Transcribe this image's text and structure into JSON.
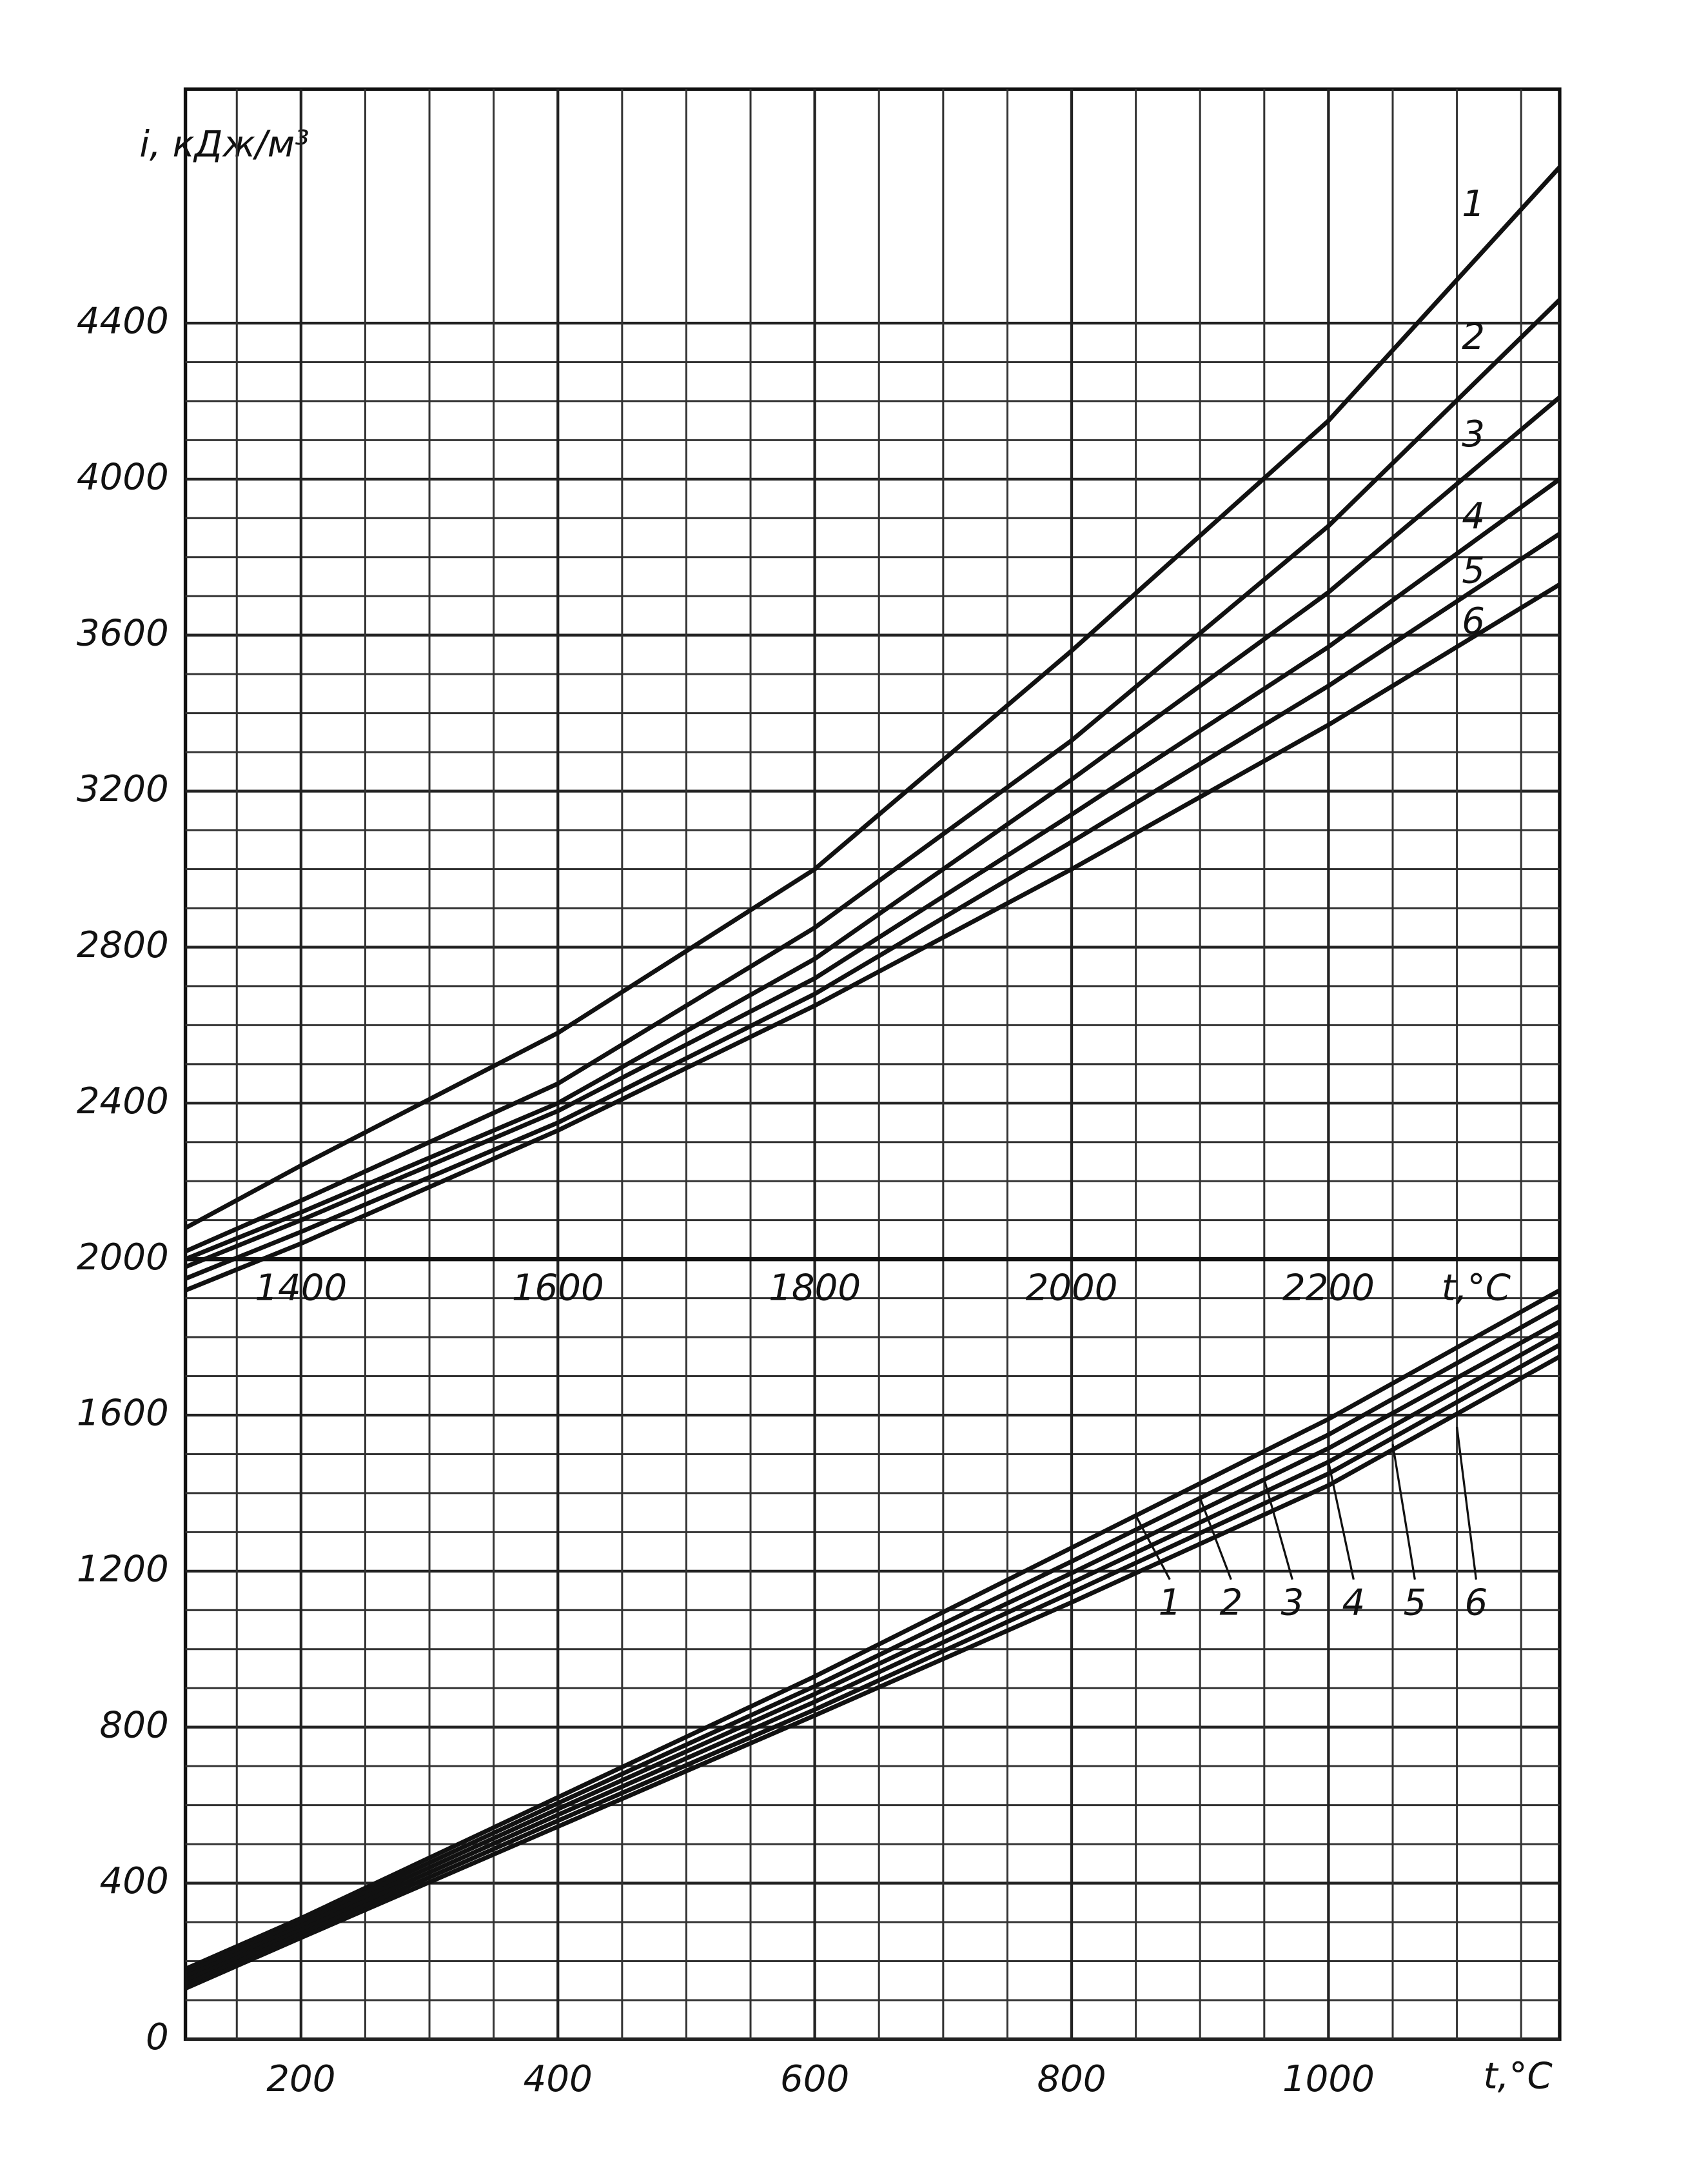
{
  "chart_data": [
    {
      "type": "line",
      "ylabel": "i, кДж/м³",
      "xlabel": "t,°C",
      "xlim": [
        110,
        1180
      ],
      "xticks": [
        200,
        400,
        600,
        800,
        1000
      ],
      "ylim": [
        0,
        5000
      ],
      "yticks": [
        0,
        400,
        800,
        1200,
        1600,
        2000,
        2400,
        2800,
        3200,
        3600,
        4000,
        4400
      ],
      "grid": true,
      "x": [
        110,
        200,
        400,
        600,
        800,
        1000,
        1180
      ],
      "series": [
        {
          "name": "1",
          "color": "#111111",
          "values": [
            180,
            310,
            620,
            930,
            1260,
            1590,
            1920
          ]
        },
        {
          "name": "2",
          "color": "#111111",
          "values": [
            170,
            300,
            605,
            905,
            1225,
            1550,
            1880
          ]
        },
        {
          "name": "3",
          "color": "#111111",
          "values": [
            160,
            290,
            590,
            885,
            1195,
            1515,
            1840
          ]
        },
        {
          "name": "4",
          "color": "#111111",
          "values": [
            150,
            280,
            575,
            865,
            1170,
            1480,
            1810
          ]
        },
        {
          "name": "5",
          "color": "#111111",
          "values": [
            140,
            270,
            560,
            845,
            1145,
            1450,
            1780
          ]
        },
        {
          "name": "6",
          "color": "#111111",
          "values": [
            130,
            260,
            545,
            830,
            1120,
            1420,
            1750
          ]
        }
      ]
    },
    {
      "type": "line",
      "xlabel": "t,°C",
      "xlim": [
        1310,
        2380
      ],
      "xticks": [
        1400,
        1600,
        1800,
        2000,
        2200
      ],
      "ylim": [
        0,
        5000
      ],
      "x": [
        1310,
        1400,
        1600,
        1800,
        2000,
        2200,
        2380
      ],
      "series": [
        {
          "name": "1",
          "color": "#111111",
          "values": [
            2080,
            2240,
            2580,
            3000,
            3560,
            4150,
            4800
          ]
        },
        {
          "name": "2",
          "color": "#111111",
          "values": [
            2020,
            2150,
            2450,
            2850,
            3330,
            3880,
            4460
          ]
        },
        {
          "name": "3",
          "color": "#111111",
          "values": [
            2000,
            2120,
            2400,
            2770,
            3230,
            3710,
            4210
          ]
        },
        {
          "name": "4",
          "color": "#111111",
          "values": [
            1980,
            2100,
            2380,
            2720,
            3140,
            3570,
            4000
          ]
        },
        {
          "name": "5",
          "color": "#111111",
          "values": [
            1950,
            2070,
            2350,
            2680,
            3070,
            3470,
            3860
          ]
        },
        {
          "name": "6",
          "color": "#111111",
          "values": [
            1920,
            2040,
            2330,
            2650,
            3000,
            3370,
            3730
          ]
        }
      ]
    }
  ]
}
